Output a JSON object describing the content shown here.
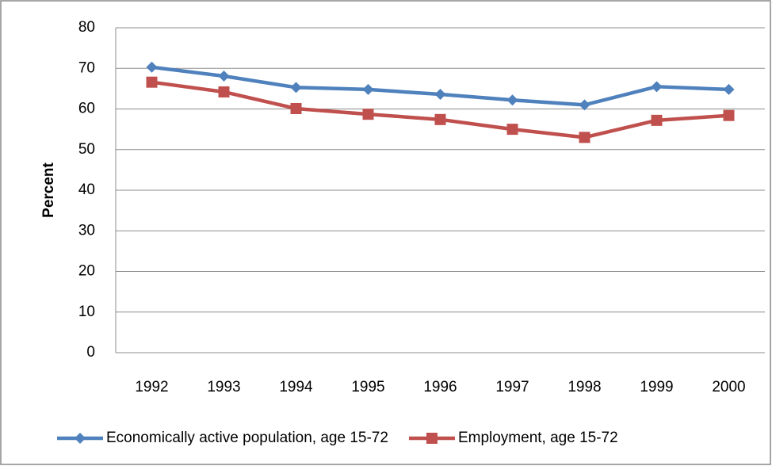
{
  "chart_data": {
    "type": "line",
    "y_label": "Percent",
    "categories": [
      "1992",
      "1993",
      "1994",
      "1995",
      "1996",
      "1997",
      "1998",
      "1999",
      "2000"
    ],
    "series": [
      {
        "name": "Economically active population, age 15-72",
        "color": "#4f81bd",
        "marker": "diamond",
        "values": [
          70.3,
          68.1,
          65.3,
          64.8,
          63.6,
          62.2,
          61.0,
          65.5,
          64.8
        ]
      },
      {
        "name": "Employment, age 15-72",
        "color": "#c0504d",
        "marker": "square",
        "values": [
          66.6,
          64.2,
          60.1,
          58.7,
          57.4,
          55.0,
          53.0,
          57.2,
          58.4
        ]
      }
    ],
    "ylim": [
      0,
      80
    ],
    "yticks": [
      0,
      10,
      20,
      30,
      40,
      50,
      60,
      70,
      80
    ],
    "grid": true,
    "legend": "bottom"
  }
}
